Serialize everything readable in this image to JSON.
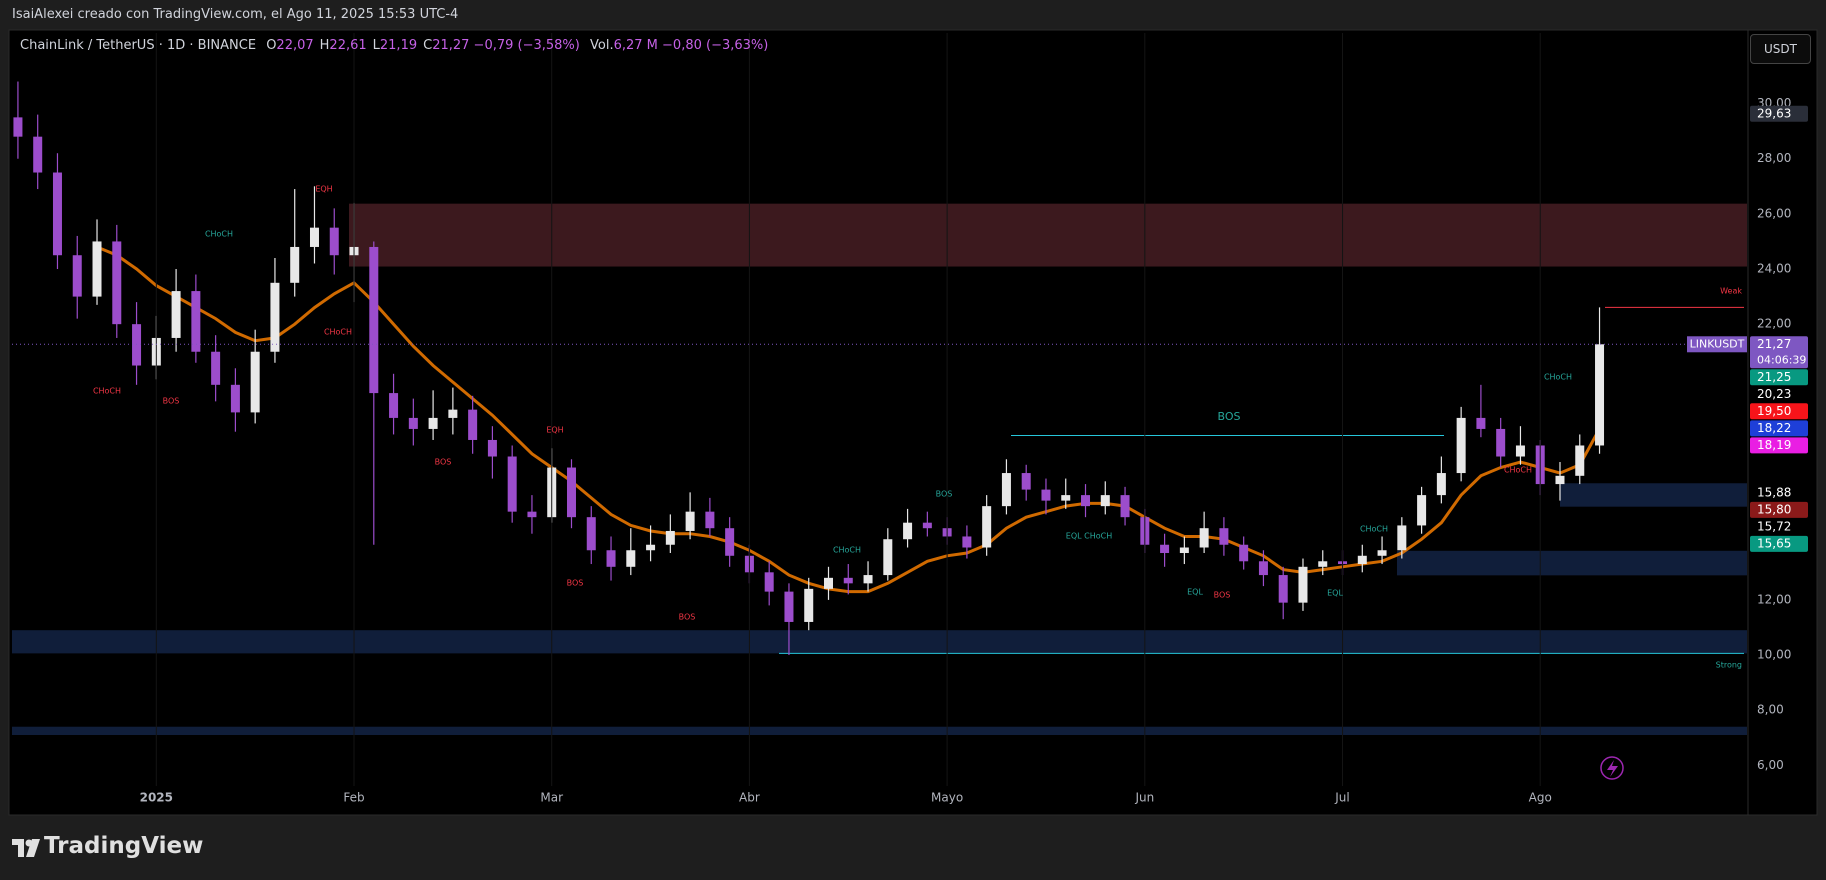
{
  "page": {
    "byline": "IsaiAlexei creado con TradingView.com, el Ago 11, 2025 15:53 UTC-4",
    "logo": "TradingView",
    "currency_button": "USDT"
  },
  "chart_data": {
    "type": "candlestick",
    "symbol": "ChainLink / TetherUS · 1D · BINANCE",
    "quote": [
      {
        "key": "O",
        "value": "22,07"
      },
      {
        "key": "H",
        "value": "22,61"
      },
      {
        "key": "L",
        "value": "21,19"
      },
      {
        "key": "C",
        "value": "21,27"
      }
    ],
    "change": "−0,79 (−3,58%)",
    "volume_key": "Vol.",
    "volume": "6,27 M",
    "volume_change": "−0,80 (−3,63%)",
    "categories": [
      null,
      null,
      null,
      null,
      null,
      null,
      null,
      "2025",
      null,
      null,
      null,
      null,
      null,
      null,
      null,
      null,
      null,
      "Feb",
      null,
      null,
      null,
      null,
      null,
      null,
      null,
      null,
      null,
      "Mar",
      null,
      null,
      null,
      null,
      null,
      null,
      null,
      null,
      null,
      "Abr",
      null,
      null,
      null,
      null,
      null,
      null,
      null,
      null,
      null,
      "Mayo",
      null,
      null,
      null,
      null,
      null,
      null,
      null,
      null,
      null,
      "Jun",
      null,
      null,
      null,
      null,
      null,
      null,
      null,
      null,
      null,
      "Jul",
      null,
      null,
      null,
      null,
      null,
      null,
      null,
      null,
      null,
      "Ago",
      null,
      null,
      null
    ],
    "open": [
      29.5,
      28.8,
      27.5,
      24.5,
      23.0,
      25.0,
      22.0,
      20.5,
      21.5,
      23.2,
      21.0,
      19.8,
      18.8,
      21.0,
      23.5,
      24.8,
      25.5,
      24.5,
      24.8,
      19.5,
      18.6,
      18.2,
      18.6,
      18.9,
      17.8,
      17.2,
      15.2,
      15.0,
      16.8,
      15.0,
      13.8,
      13.2,
      13.8,
      14.0,
      14.5,
      15.2,
      14.6,
      13.6,
      13.0,
      12.3,
      11.2,
      12.4,
      12.8,
      12.6,
      12.9,
      14.2,
      14.8,
      14.6,
      14.3,
      13.9,
      15.4,
      16.6,
      16.0,
      15.6,
      15.8,
      15.4,
      15.8,
      15.0,
      14.0,
      13.7,
      13.9,
      14.6,
      14.0,
      13.4,
      12.9,
      11.9,
      13.2,
      13.4,
      13.3,
      13.6,
      13.8,
      14.7,
      15.8,
      16.6,
      18.6,
      18.2,
      17.2,
      17.6,
      16.2,
      16.5,
      17.6
    ],
    "high": [
      30.8,
      29.6,
      28.2,
      25.2,
      25.8,
      25.6,
      22.8,
      22.3,
      24.0,
      23.8,
      21.6,
      20.4,
      21.8,
      24.4,
      26.9,
      27.0,
      26.2,
      26.4,
      25.0,
      20.2,
      19.3,
      19.6,
      19.7,
      19.4,
      18.3,
      17.6,
      15.8,
      17.5,
      17.1,
      15.4,
      14.3,
      14.6,
      14.7,
      15.1,
      15.9,
      15.7,
      15.0,
      14.0,
      13.4,
      12.6,
      12.8,
      13.2,
      13.3,
      13.4,
      14.6,
      15.3,
      15.2,
      15.0,
      14.7,
      15.8,
      17.1,
      16.9,
      16.4,
      16.4,
      16.2,
      16.3,
      16.1,
      15.3,
      14.4,
      14.3,
      15.2,
      15.0,
      14.3,
      13.8,
      13.2,
      13.5,
      13.8,
      13.8,
      14.0,
      14.3,
      15.0,
      16.1,
      17.2,
      19.0,
      19.8,
      18.6,
      18.3,
      17.8,
      17.0,
      18.0,
      22.61
    ],
    "low": [
      28.0,
      26.9,
      24.0,
      22.2,
      22.7,
      21.5,
      19.8,
      20.0,
      21.0,
      20.6,
      19.2,
      18.1,
      18.4,
      20.6,
      23.0,
      24.2,
      23.8,
      22.8,
      14.0,
      18.0,
      17.6,
      17.8,
      18.0,
      17.3,
      16.4,
      14.8,
      14.4,
      14.8,
      14.6,
      13.3,
      12.7,
      12.9,
      13.4,
      13.7,
      14.2,
      14.3,
      13.2,
      12.6,
      11.8,
      10.0,
      10.9,
      12.0,
      12.2,
      12.3,
      12.7,
      13.9,
      14.3,
      14.0,
      13.5,
      13.6,
      15.1,
      15.6,
      15.1,
      15.3,
      15.0,
      15.1,
      14.7,
      13.7,
      13.2,
      13.3,
      13.7,
      13.6,
      13.1,
      12.5,
      11.3,
      11.6,
      12.9,
      12.9,
      13.0,
      13.3,
      13.5,
      14.4,
      15.5,
      16.3,
      17.9,
      16.8,
      16.9,
      15.8,
      15.6,
      16.2,
      17.3
    ],
    "close": [
      28.8,
      27.5,
      24.5,
      23.0,
      25.0,
      22.0,
      20.5,
      21.5,
      23.2,
      21.0,
      19.8,
      18.8,
      21.0,
      23.5,
      24.8,
      25.5,
      24.5,
      24.8,
      19.5,
      18.6,
      18.2,
      18.6,
      18.9,
      17.8,
      17.2,
      15.2,
      15.0,
      16.8,
      15.0,
      13.8,
      13.2,
      13.8,
      14.0,
      14.5,
      15.2,
      14.6,
      13.6,
      13.0,
      12.3,
      11.2,
      12.4,
      12.8,
      12.6,
      12.9,
      14.2,
      14.8,
      14.6,
      14.3,
      13.9,
      15.4,
      16.6,
      16.0,
      15.6,
      15.8,
      15.4,
      15.8,
      15.0,
      14.0,
      13.7,
      13.9,
      14.6,
      14.0,
      13.4,
      12.9,
      11.9,
      13.2,
      13.4,
      13.3,
      13.6,
      13.8,
      14.7,
      15.8,
      16.6,
      18.6,
      18.2,
      17.2,
      17.6,
      16.2,
      16.5,
      17.6,
      21.27
    ],
    "up_color": "#e8e8e8",
    "down_color": "#9c4dcc",
    "lines": [
      {
        "color": "#f57c00",
        "values": [
          null,
          null,
          null,
          null,
          24.8,
          24.5,
          24.0,
          23.4,
          23.0,
          22.6,
          22.2,
          21.7,
          21.4,
          21.5,
          22.0,
          22.6,
          23.1,
          23.5,
          22.8,
          22.0,
          21.2,
          20.5,
          19.9,
          19.3,
          18.7,
          18.0,
          17.3,
          16.8,
          16.3,
          15.7,
          15.1,
          14.7,
          14.5,
          14.4,
          14.4,
          14.3,
          14.1,
          13.8,
          13.4,
          12.9,
          12.6,
          12.4,
          12.3,
          12.3,
          12.6,
          13.0,
          13.4,
          13.6,
          13.7,
          14.0,
          14.6,
          15.0,
          15.2,
          15.4,
          15.5,
          15.5,
          15.4,
          15.0,
          14.6,
          14.3,
          14.3,
          14.2,
          13.9,
          13.6,
          13.1,
          13.0,
          13.1,
          13.2,
          13.3,
          13.4,
          13.7,
          14.2,
          14.8,
          15.8,
          16.5,
          16.8,
          17.0,
          16.8,
          16.6,
          16.9,
          18.2
        ]
      }
    ],
    "zones": [
      {
        "from": 24.09,
        "to": 26.37,
        "color": "rgba(110,45,55,0.55)"
      },
      {
        "from": 15.38,
        "to": 16.23,
        "color": "rgba(30,55,105,0.55)"
      },
      {
        "from": 12.89,
        "to": 13.78,
        "color": "rgba(30,55,105,0.55)"
      },
      {
        "from": 10.06,
        "to": 10.9,
        "color": "rgba(30,55,105,0.55)"
      },
      {
        "from": 7.1,
        "to": 7.4,
        "color": "rgba(30,55,105,0.55)"
      }
    ],
    "levels": [
      {
        "value": 22.61,
        "color": "#f23645"
      },
      {
        "value": 17.96,
        "color": "#26c6da"
      },
      {
        "value": 10.06,
        "color": "#26c6da"
      }
    ],
    "annotations": [
      {
        "text": "EQH",
        "color": "#f23645"
      },
      {
        "text": "CHoCH",
        "color": "#26a69a"
      },
      {
        "text": "CHoCH",
        "color": "#f23645"
      },
      {
        "text": "BOS",
        "color": "#f23645"
      },
      {
        "text": "CHoCH",
        "color": "#f23645"
      },
      {
        "text": "BOS",
        "color": "#f23645"
      },
      {
        "text": "EQH",
        "color": "#f23645"
      },
      {
        "text": "BOS",
        "color": "#f23645"
      },
      {
        "text": "BOS",
        "color": "#f23645"
      },
      {
        "text": "CHoCH",
        "color": "#26a69a"
      },
      {
        "text": "BOS",
        "color": "#26a69a"
      },
      {
        "text": "EQL CHoCH",
        "color": "#26a69a"
      },
      {
        "text": "BOS",
        "color": "#26a69a"
      },
      {
        "text": "EQL",
        "color": "#26a69a"
      },
      {
        "text": "BOS",
        "color": "#f23645"
      },
      {
        "text": "EQL",
        "color": "#26a69a"
      },
      {
        "text": "CHoCH",
        "color": "#26a69a"
      },
      {
        "text": "CHoCH",
        "color": "#26a69a"
      },
      {
        "text": "CHoCH",
        "color": "#f23645"
      },
      {
        "text": "Weak",
        "color": "#f23645"
      },
      {
        "text": "Strong",
        "color": "#26a69a"
      }
    ],
    "symbol_tag": "LINKUSDT",
    "countdown": "04:06:39",
    "price_labels": [
      {
        "value": 29.63,
        "label": "29,63",
        "color": "#2a2e39"
      },
      {
        "value": 21.27,
        "label": "21,27",
        "color": "#7e57c2"
      },
      {
        "value": 21.25,
        "label": "21,25",
        "color": "#089981"
      },
      {
        "value": 20.23,
        "label": "20,23",
        "color": "#000000"
      },
      {
        "value": 19.5,
        "label": "19,50",
        "color": "#f7141a"
      },
      {
        "value": 18.22,
        "label": "18,22",
        "color": "#1e3fd8"
      },
      {
        "value": 18.19,
        "label": "18,19",
        "color": "#e91ee3"
      },
      {
        "value": 15.88,
        "label": "15,88",
        "color": "#000000"
      },
      {
        "value": 15.8,
        "label": "15,80",
        "color": "#8b1a1a"
      },
      {
        "value": 15.72,
        "label": "15,72",
        "color": "#000000"
      },
      {
        "value": 15.65,
        "label": "15,65",
        "color": "#089981"
      }
    ],
    "ylim": [
      5.25,
      32.56
    ],
    "yticks": [
      {
        "value": 30,
        "label": "30,00"
      },
      {
        "value": 28,
        "label": "28,00"
      },
      {
        "value": 26,
        "label": "26,00"
      },
      {
        "value": 24,
        "label": "24,00"
      },
      {
        "value": 22,
        "label": "22,00"
      },
      {
        "value": 12,
        "label": "12,00"
      },
      {
        "value": 10,
        "label": "10,00"
      },
      {
        "value": 8,
        "label": "8,00"
      },
      {
        "value": 6,
        "label": "6,00"
      }
    ]
  }
}
